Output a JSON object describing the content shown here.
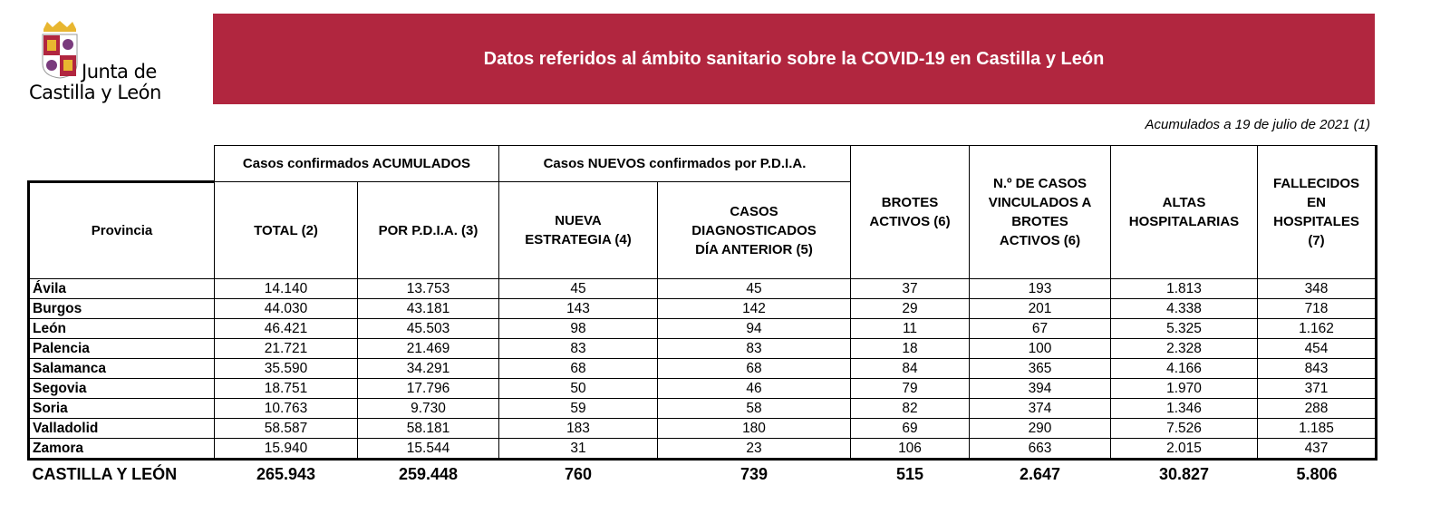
{
  "logo": {
    "line1": "Junta de",
    "line2": "Castilla y León"
  },
  "banner": {
    "title": "Datos referidos al ámbito sanitario sobre la COVID-19 en Castilla y León",
    "color": "#b1263f"
  },
  "date_note": "Acumulados a 19 de julio de 2021 (1)",
  "table": {
    "group_headers": {
      "acumulados": "Casos confirmados ACUMULADOS",
      "nuevos": "Casos NUEVOS confirmados por P.D.I.A."
    },
    "columns": [
      "Provincia",
      "TOTAL (2)",
      "POR P.D.I.A. (3)",
      "NUEVA ESTRATEGIA (4)",
      "CASOS DIAGNOSTICADOS DÍA ANTERIOR (5)",
      "BROTES ACTIVOS (6)",
      "N.º DE CASOS VINCULADOS A BROTES ACTIVOS (6)",
      "ALTAS HOSPITALARIAS",
      "FALLECIDOS EN HOSPITALES (7)"
    ],
    "rows": [
      [
        "Ávila",
        "14.140",
        "13.753",
        "45",
        "45",
        "37",
        "193",
        "1.813",
        "348"
      ],
      [
        "Burgos",
        "44.030",
        "43.181",
        "143",
        "142",
        "29",
        "201",
        "4.338",
        "718"
      ],
      [
        "León",
        "46.421",
        "45.503",
        "98",
        "94",
        "11",
        "67",
        "5.325",
        "1.162"
      ],
      [
        "Palencia",
        "21.721",
        "21.469",
        "83",
        "83",
        "18",
        "100",
        "2.328",
        "454"
      ],
      [
        "Salamanca",
        "35.590",
        "34.291",
        "68",
        "68",
        "84",
        "365",
        "4.166",
        "843"
      ],
      [
        "Segovia",
        "18.751",
        "17.796",
        "50",
        "46",
        "79",
        "394",
        "1.970",
        "371"
      ],
      [
        "Soria",
        "10.763",
        "9.730",
        "59",
        "58",
        "82",
        "374",
        "1.346",
        "288"
      ],
      [
        "Valladolid",
        "58.587",
        "58.181",
        "183",
        "180",
        "69",
        "290",
        "7.526",
        "1.185"
      ],
      [
        "Zamora",
        "15.940",
        "15.544",
        "31",
        "23",
        "106",
        "663",
        "2.015",
        "437"
      ]
    ],
    "total": [
      "CASTILLA Y LEÓN",
      "265.943",
      "259.448",
      "760",
      "739",
      "515",
      "2.647",
      "30.827",
      "5.806"
    ]
  }
}
